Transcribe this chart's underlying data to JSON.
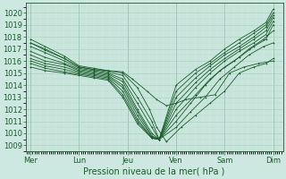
{
  "xlabel": "Pression niveau de la mer( hPa )",
  "bg_color": "#cce8e0",
  "line_color": "#1a5c2a",
  "grid_color": "#a8ccc0",
  "ylim": [
    1008.5,
    1020.8
  ],
  "yticks": [
    1009,
    1010,
    1011,
    1012,
    1013,
    1014,
    1015,
    1016,
    1017,
    1018,
    1019,
    1020
  ],
  "day_labels": [
    "Mer",
    "Lun",
    "Jeu",
    "Ven",
    "Sam",
    "Dim"
  ],
  "day_positions": [
    0,
    1,
    2,
    3,
    4,
    5
  ],
  "lines": [
    {
      "x": [
        0.0,
        0.3,
        0.7,
        1.0,
        1.3,
        1.6,
        1.9,
        2.1,
        2.4,
        2.6,
        2.8,
        3.0,
        3.2,
        3.5,
        3.8,
        4.1,
        4.4,
        4.7,
        5.0
      ],
      "y": [
        1017.5,
        1017.0,
        1016.2,
        1015.5,
        1015.3,
        1015.2,
        1015.1,
        1014.5,
        1013.5,
        1012.8,
        1012.3,
        1012.5,
        1012.8,
        1013.0,
        1013.2,
        1015.0,
        1015.5,
        1015.8,
        1016.0
      ]
    },
    {
      "x": [
        0.0,
        0.3,
        0.7,
        1.0,
        1.3,
        1.6,
        1.9,
        2.2,
        2.45,
        2.6,
        2.8,
        3.1,
        3.4,
        3.7,
        4.0,
        4.3,
        4.6,
        4.85,
        5.0
      ],
      "y": [
        1017.8,
        1017.2,
        1016.4,
        1015.6,
        1015.4,
        1015.2,
        1015.0,
        1013.8,
        1012.0,
        1010.5,
        1009.3,
        1010.5,
        1011.5,
        1012.5,
        1013.5,
        1015.0,
        1015.5,
        1015.8,
        1016.2
      ]
    },
    {
      "x": [
        0.0,
        0.3,
        0.7,
        1.0,
        1.3,
        1.6,
        1.9,
        2.2,
        2.5,
        2.65,
        3.0,
        3.3,
        3.6,
        3.9,
        4.2,
        4.5,
        4.8,
        5.0
      ],
      "y": [
        1017.5,
        1016.9,
        1016.2,
        1015.5,
        1015.3,
        1015.1,
        1014.8,
        1013.0,
        1011.0,
        1009.5,
        1010.5,
        1011.8,
        1013.0,
        1014.5,
        1015.5,
        1016.5,
        1017.2,
        1017.5
      ]
    },
    {
      "x": [
        0.0,
        0.3,
        0.7,
        1.0,
        1.3,
        1.6,
        1.9,
        2.2,
        2.5,
        2.65,
        3.0,
        3.3,
        3.6,
        3.9,
        4.2,
        4.5,
        4.8,
        5.0
      ],
      "y": [
        1017.2,
        1016.7,
        1016.0,
        1015.4,
        1015.2,
        1015.0,
        1014.5,
        1012.5,
        1010.5,
        1009.5,
        1011.0,
        1012.5,
        1014.0,
        1015.2,
        1016.0,
        1017.0,
        1017.8,
        1018.5
      ]
    },
    {
      "x": [
        0.0,
        0.3,
        0.7,
        1.0,
        1.3,
        1.6,
        1.9,
        2.2,
        2.5,
        2.65,
        3.0,
        3.4,
        3.7,
        4.0,
        4.3,
        4.6,
        4.85,
        5.0
      ],
      "y": [
        1016.8,
        1016.3,
        1015.8,
        1015.3,
        1015.1,
        1014.9,
        1014.3,
        1012.0,
        1010.0,
        1009.5,
        1011.5,
        1013.2,
        1014.5,
        1015.5,
        1016.3,
        1017.2,
        1017.8,
        1019.0
      ]
    },
    {
      "x": [
        0.0,
        0.3,
        0.7,
        1.0,
        1.3,
        1.6,
        1.9,
        2.2,
        2.5,
        2.65,
        3.0,
        3.4,
        3.7,
        4.0,
        4.3,
        4.6,
        4.85,
        5.0
      ],
      "y": [
        1016.5,
        1016.0,
        1015.7,
        1015.2,
        1015.0,
        1014.8,
        1014.0,
        1011.8,
        1009.8,
        1009.5,
        1012.0,
        1013.8,
        1015.0,
        1016.0,
        1016.8,
        1017.5,
        1018.2,
        1019.3
      ]
    },
    {
      "x": [
        0.0,
        0.3,
        0.7,
        1.0,
        1.3,
        1.6,
        1.9,
        2.2,
        2.5,
        2.65,
        3.0,
        3.4,
        3.7,
        4.0,
        4.3,
        4.6,
        4.85,
        5.0
      ],
      "y": [
        1016.2,
        1015.8,
        1015.5,
        1015.1,
        1014.9,
        1014.7,
        1013.8,
        1011.5,
        1009.7,
        1009.5,
        1012.5,
        1014.2,
        1015.3,
        1016.2,
        1017.0,
        1017.8,
        1018.5,
        1019.6
      ]
    },
    {
      "x": [
        0.0,
        0.3,
        0.7,
        1.0,
        1.3,
        1.6,
        1.9,
        2.2,
        2.5,
        2.65,
        3.0,
        3.4,
        3.7,
        4.0,
        4.3,
        4.6,
        4.85,
        5.0
      ],
      "y": [
        1016.0,
        1015.6,
        1015.3,
        1015.0,
        1014.8,
        1014.6,
        1013.5,
        1011.2,
        1009.6,
        1009.5,
        1013.0,
        1014.6,
        1015.6,
        1016.5,
        1017.2,
        1018.0,
        1018.8,
        1019.8
      ]
    },
    {
      "x": [
        0.0,
        0.3,
        0.7,
        1.0,
        1.3,
        1.6,
        1.9,
        2.2,
        2.5,
        2.65,
        3.0,
        3.4,
        3.7,
        4.0,
        4.3,
        4.6,
        4.85,
        5.0
      ],
      "y": [
        1015.8,
        1015.4,
        1015.1,
        1014.9,
        1014.7,
        1014.5,
        1013.2,
        1011.0,
        1009.6,
        1009.5,
        1013.5,
        1015.0,
        1015.8,
        1016.7,
        1017.5,
        1018.3,
        1019.0,
        1020.0
      ]
    },
    {
      "x": [
        0.0,
        0.3,
        0.7,
        1.0,
        1.3,
        1.6,
        1.9,
        2.2,
        2.5,
        2.65,
        3.0,
        3.4,
        3.7,
        4.0,
        4.3,
        4.6,
        4.85,
        5.0
      ],
      "y": [
        1015.5,
        1015.2,
        1015.0,
        1014.8,
        1014.6,
        1014.4,
        1013.0,
        1010.8,
        1009.6,
        1009.5,
        1014.0,
        1015.3,
        1016.0,
        1017.0,
        1017.8,
        1018.5,
        1019.2,
        1020.3
      ]
    }
  ],
  "tick_label_fontsize": 6.0,
  "xlabel_fontsize": 7.0
}
